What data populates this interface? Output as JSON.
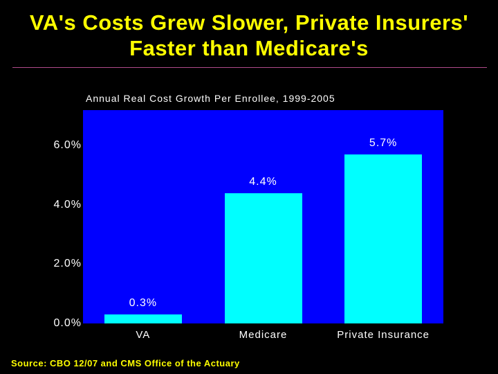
{
  "slide": {
    "title_line1": "VA's Costs Grew Slower, Private Insurers'",
    "title_line2": "Faster than Medicare's",
    "source": "Source: CBO 12/07 and  CMS Office of the Actuary"
  },
  "chart_data": {
    "type": "bar",
    "title": "Annual Real Cost Growth Per Enrollee, 1999-2005",
    "xlabel": "",
    "ylabel": "",
    "categories": [
      "VA",
      "Medicare",
      "Private Insurance"
    ],
    "values": [
      0.3,
      4.4,
      5.7
    ],
    "value_labels": [
      "0.3%",
      "4.4%",
      "5.7%"
    ],
    "yticks": [
      0.0,
      2.0,
      4.0,
      6.0
    ],
    "ytick_labels": [
      "0.0%",
      "2.0%",
      "4.0%",
      "6.0%"
    ],
    "ylim": [
      0,
      7.2
    ],
    "legend": "none",
    "grid": false,
    "colors": {
      "background": "#000000",
      "plot_area": "#0000ff",
      "bar": "#00ffff",
      "title": "#ffff00",
      "text": "#ffffff",
      "rule": "#b04a8a"
    }
  }
}
